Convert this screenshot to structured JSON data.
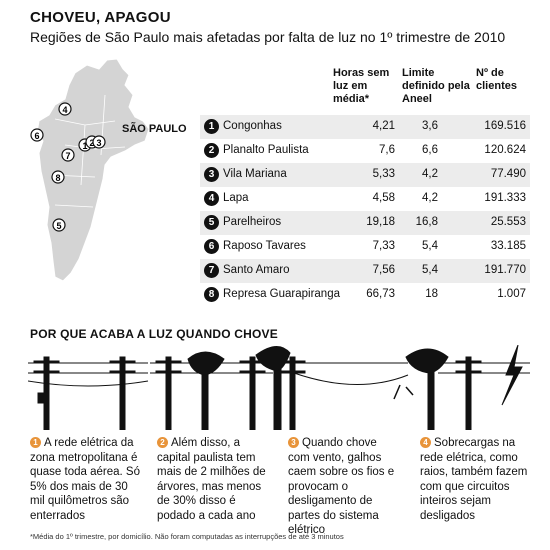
{
  "header": {
    "title": "CHOVEU, APAGOU",
    "subtitle": "Regiões de São Paulo mais afetadas por falta de luz no 1º trimestre de 2010"
  },
  "map": {
    "label": "SÃO PAULO",
    "fill_color": "#d4d4d4"
  },
  "table": {
    "headers": [
      "Horas sem luz em média*",
      "Limite definido pela Aneel",
      "Nº de clientes"
    ],
    "rows": [
      {
        "num": "1",
        "name": "Congonhas",
        "hours": "4,21",
        "limit": "3,6",
        "clients": "169.516"
      },
      {
        "num": "2",
        "name": "Planalto Paulista",
        "hours": "7,6",
        "limit": "6,6",
        "clients": "120.624"
      },
      {
        "num": "3",
        "name": "Vila Mariana",
        "hours": "5,33",
        "limit": "4,2",
        "clients": "77.490"
      },
      {
        "num": "4",
        "name": "Lapa",
        "hours": "4,58",
        "limit": "4,2",
        "clients": "191.333"
      },
      {
        "num": "5",
        "name": "Parelheiros",
        "hours": "19,18",
        "limit": "16,8",
        "clients": "25.553"
      },
      {
        "num": "6",
        "name": "Raposo Tavares",
        "hours": "7,33",
        "limit": "5,4",
        "clients": "33.185"
      },
      {
        "num": "7",
        "name": "Santo Amaro",
        "hours": "7,56",
        "limit": "5,4",
        "clients": "191.770"
      },
      {
        "num": "8",
        "name": "Represa Guarapiranga",
        "hours": "66,73",
        "limit": "18",
        "clients": "1.007"
      }
    ]
  },
  "section": {
    "title": "POR QUE ACABA A LUZ QUANDO CHOVE",
    "accent_color": "#e8943a",
    "captions": [
      {
        "num": "1",
        "text": "A rede elétrica da zona metropolitana é quase toda aérea. Só 5% dos mais de 30 mil quilômetros são enterrados"
      },
      {
        "num": "2",
        "text": "Além disso, a capital paulista tem mais de 2 milhões de árvores, mas menos de 30% disso é podado a cada ano"
      },
      {
        "num": "3",
        "text": "Quando chove com vento, galhos caem sobre os fios e provocam o desligamento de partes do sistema elétrico"
      },
      {
        "num": "4",
        "text": "Sobrecargas na rede elétrica, como raios, também fazem com que circuitos inteiros sejam desligados"
      }
    ]
  },
  "footnote": "*Média do 1º trimestre, por domicílio. Não foram computadas as interrupções de até 3 minutos"
}
